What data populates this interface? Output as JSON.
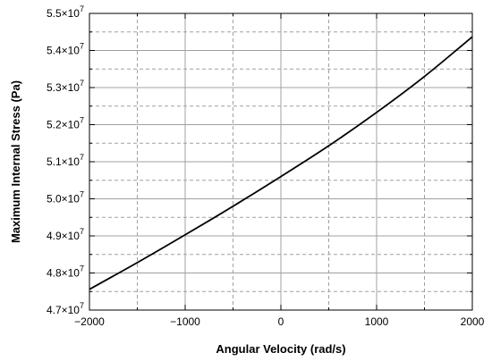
{
  "chart_data": {
    "type": "line",
    "xlabel": "Angular Velocity (rad/s)",
    "ylabel": "Maximum Internal Stress (Pa)",
    "xlim": [
      -2000,
      2000
    ],
    "ylim": [
      47000000,
      55000000
    ],
    "x_ticks": [
      -2000,
      -1000,
      0,
      1000,
      2000
    ],
    "x_tick_labels": [
      "−2000",
      "−1000",
      "0",
      "1000",
      "2000"
    ],
    "y_tick_labels": [
      {
        "value": 47000000,
        "mantissa": "4.7",
        "exp": "7"
      },
      {
        "value": 48000000,
        "mantissa": "4.8",
        "exp": "7"
      },
      {
        "value": 49000000,
        "mantissa": "4.9",
        "exp": "7"
      },
      {
        "value": 50000000,
        "mantissa": "5.0",
        "exp": "7"
      },
      {
        "value": 51000000,
        "mantissa": "5.1",
        "exp": "7"
      },
      {
        "value": 52000000,
        "mantissa": "5.2",
        "exp": "7"
      },
      {
        "value": 53000000,
        "mantissa": "5.3",
        "exp": "7"
      },
      {
        "value": 54000000,
        "mantissa": "5.4",
        "exp": "7"
      },
      {
        "value": 55000000,
        "mantissa": "5.5",
        "exp": "7"
      }
    ],
    "grid": true,
    "line_color": "#000000",
    "grid_color": "#a0a0a0",
    "series": [
      {
        "x": [
          -2000,
          -1500,
          -1000,
          -500,
          0,
          500,
          1000,
          1500,
          2000
        ],
        "y": [
          47560000,
          48280000,
          49030000,
          49800000,
          50600000,
          51430000,
          52330000,
          53300000,
          54370000
        ]
      }
    ]
  }
}
